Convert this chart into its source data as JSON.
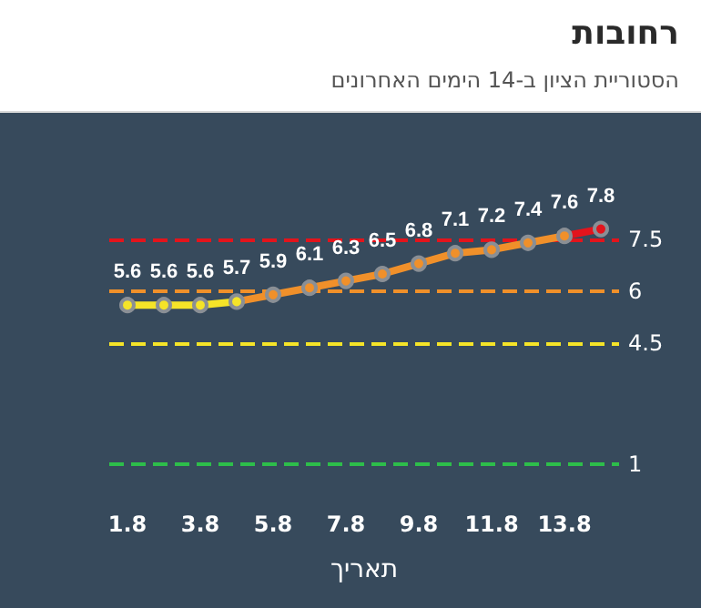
{
  "chart_data": {
    "type": "line",
    "title": "רחובות",
    "subtitle": "הסטוריית הציון ב-14 הימים האחרונים",
    "xlabel": "תאריך",
    "categories": [
      "1.8",
      null,
      "3.8",
      null,
      "5.8",
      null,
      "7.8",
      null,
      "9.8",
      null,
      "11.8",
      null,
      "13.8",
      null
    ],
    "series": [
      {
        "values": [
          5.6,
          5.6,
          5.6,
          5.7,
          5.9,
          6.1,
          6.3,
          6.5,
          6.8,
          7.1,
          7.2,
          7.4,
          7.6,
          7.8
        ],
        "colors": [
          "#f5e428",
          "#f5e428",
          "#f5e428",
          "#f5e428",
          "#f0902a",
          "#f0902a",
          "#f0902a",
          "#f0902a",
          "#f0902a",
          "#f0902a",
          "#f0902a",
          "#f0902a",
          "#f0902a",
          "#e3141c"
        ]
      }
    ],
    "ref_lines": [
      {
        "axis": "y",
        "value": 7.5,
        "label": "7.5",
        "color": "#e3141c",
        "line_style": "dashed"
      },
      {
        "axis": "y",
        "value": 6,
        "label": "6",
        "color": "#f0902a",
        "line_style": "dashed"
      },
      {
        "axis": "y",
        "value": 4.5,
        "label": "4.5",
        "color": "#f5e428",
        "line_style": "dashed"
      },
      {
        "axis": "y",
        "value": 1,
        "label": "1",
        "color": "#2dbe4a",
        "line_style": "dashed"
      }
    ],
    "data_labels": true,
    "marker": "circle",
    "tick_labels": "x"
  }
}
